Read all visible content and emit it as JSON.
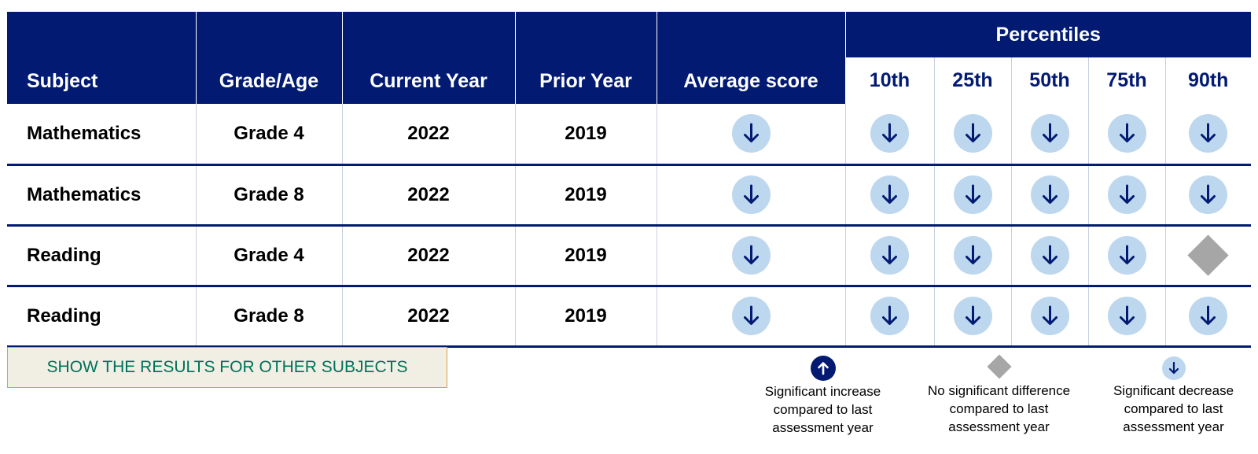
{
  "table": {
    "headers": {
      "subject": "Subject",
      "grade_age": "Grade/Age",
      "current_year": "Current Year",
      "prior_year": "Prior Year",
      "average_score": "Average score",
      "percentiles": "Percentiles",
      "percentile_columns": [
        "10th",
        "25th",
        "50th",
        "75th",
        "90th"
      ]
    },
    "rows": [
      {
        "subject": "Mathematics",
        "grade": "Grade 4",
        "current_year": "2022",
        "prior_year": "2019",
        "average_score": "significant-decrease",
        "percentiles": [
          "significant-decrease",
          "significant-decrease",
          "significant-decrease",
          "significant-decrease",
          "significant-decrease"
        ]
      },
      {
        "subject": "Mathematics",
        "grade": "Grade 8",
        "current_year": "2022",
        "prior_year": "2019",
        "average_score": "significant-decrease",
        "percentiles": [
          "significant-decrease",
          "significant-decrease",
          "significant-decrease",
          "significant-decrease",
          "significant-decrease"
        ]
      },
      {
        "subject": "Reading",
        "grade": "Grade 4",
        "current_year": "2022",
        "prior_year": "2019",
        "average_score": "significant-decrease",
        "percentiles": [
          "significant-decrease",
          "significant-decrease",
          "significant-decrease",
          "significant-decrease",
          "no-significant-difference"
        ]
      },
      {
        "subject": "Reading",
        "grade": "Grade 8",
        "current_year": "2022",
        "prior_year": "2019",
        "average_score": "significant-decrease",
        "percentiles": [
          "significant-decrease",
          "significant-decrease",
          "significant-decrease",
          "significant-decrease",
          "significant-decrease"
        ]
      }
    ]
  },
  "subjects_button": {
    "label": "SHOW THE RESULTS FOR OTHER SUBJECTS"
  },
  "legend": {
    "increase": {
      "icon": "arrow-up-circle-icon",
      "lines": [
        "Significant increase",
        "compared to last",
        "assessment year"
      ]
    },
    "no_difference": {
      "icon": "diamond-icon",
      "lines": [
        "No significant difference",
        "compared to last",
        "assessment year"
      ]
    },
    "decrease": {
      "icon": "arrow-down-circle-icon",
      "lines": [
        "Significant decrease",
        "compared to last",
        "assessment year"
      ]
    }
  },
  "colors": {
    "header_navy": "#021a72",
    "decrease_circle": "#bdd7ee",
    "neutral_diamond": "#a6a6a6",
    "button_background": "#f1eee4",
    "button_border": "#d9a441",
    "button_text": "#00715b"
  }
}
